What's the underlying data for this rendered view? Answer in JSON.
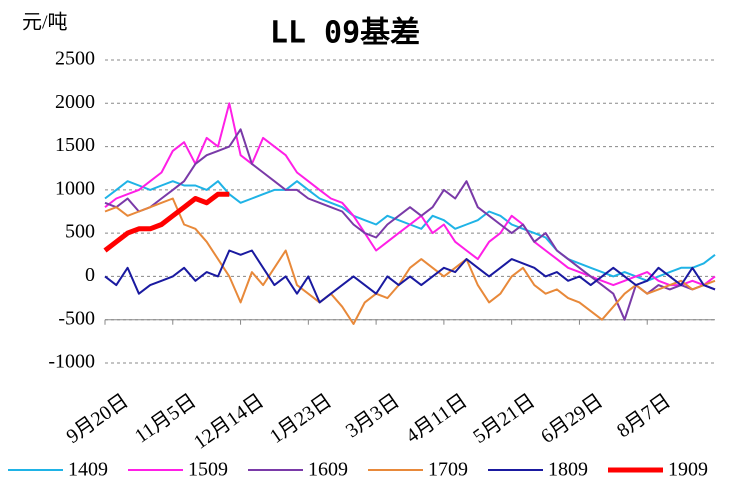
{
  "chart_data": {
    "type": "line",
    "title": "LL 09基差",
    "y_label": "元/吨",
    "categories": [
      "9月20日",
      null,
      null,
      null,
      null,
      null,
      "11月5日",
      null,
      null,
      null,
      null,
      null,
      "12月14日",
      null,
      null,
      null,
      null,
      null,
      "1月23日",
      null,
      null,
      null,
      null,
      null,
      "3月3日",
      null,
      null,
      null,
      null,
      null,
      "4月11日",
      null,
      null,
      null,
      null,
      null,
      "5月21日",
      null,
      null,
      null,
      null,
      null,
      "6月29日",
      null,
      null,
      null,
      null,
      null,
      "8月7日",
      null,
      null,
      null,
      null,
      null,
      null
    ],
    "series": [
      {
        "name": "1409",
        "color": "#1fb3e6",
        "width": 2,
        "values": [
          900,
          1000,
          1100,
          1050,
          1000,
          1050,
          1100,
          1050,
          1050,
          1000,
          1100,
          950,
          850,
          900,
          950,
          1000,
          1000,
          1100,
          1000,
          900,
          850,
          800,
          700,
          650,
          600,
          700,
          650,
          600,
          550,
          700,
          650,
          550,
          600,
          650,
          750,
          700,
          600,
          550,
          500,
          450,
          300,
          200,
          150,
          100,
          50,
          0,
          50,
          0,
          -50,
          0,
          50,
          100,
          100,
          150,
          250
        ]
      },
      {
        "name": "1509",
        "color": "#ff1fe6",
        "width": 2,
        "values": [
          800,
          900,
          950,
          1000,
          1100,
          1200,
          1450,
          1550,
          1300,
          1600,
          1500,
          2000,
          1400,
          1300,
          1600,
          1500,
          1400,
          1200,
          1100,
          1000,
          900,
          850,
          700,
          500,
          300,
          400,
          500,
          600,
          700,
          500,
          600,
          400,
          300,
          200,
          400,
          500,
          700,
          600,
          400,
          300,
          200,
          100,
          50,
          0,
          -50,
          -100,
          -50,
          0,
          50,
          -50,
          -100,
          -100,
          -50,
          -100,
          0
        ]
      },
      {
        "name": "1609",
        "color": "#7a3aa8",
        "width": 2,
        "values": [
          850,
          800,
          900,
          750,
          800,
          900,
          1000,
          1100,
          1300,
          1400,
          1450,
          1500,
          1700,
          1300,
          1200,
          1100,
          1000,
          1000,
          900,
          850,
          800,
          750,
          600,
          500,
          450,
          600,
          700,
          800,
          700,
          800,
          1000,
          900,
          1100,
          800,
          700,
          600,
          500,
          600,
          400,
          500,
          300,
          200,
          100,
          0,
          -100,
          -200,
          -500,
          -100,
          -200,
          -100,
          -150,
          -100,
          -150,
          -100,
          -150
        ]
      },
      {
        "name": "1709",
        "color": "#e8893a",
        "width": 2,
        "values": [
          750,
          800,
          700,
          750,
          800,
          850,
          900,
          600,
          550,
          400,
          200,
          0,
          -300,
          50,
          -100,
          100,
          300,
          -100,
          -200,
          -300,
          -200,
          -350,
          -550,
          -300,
          -200,
          -250,
          -100,
          100,
          200,
          100,
          0,
          100,
          200,
          -100,
          -300,
          -200,
          0,
          100,
          -100,
          -200,
          -150,
          -250,
          -300,
          -400,
          -500,
          -350,
          -200,
          -100,
          -200,
          -150,
          -100,
          -50,
          -150,
          -100,
          -50
        ]
      },
      {
        "name": "1809",
        "color": "#1a1aa0",
        "width": 2,
        "values": [
          0,
          -100,
          100,
          -200,
          -100,
          -50,
          0,
          100,
          -50,
          50,
          0,
          300,
          250,
          300,
          100,
          -100,
          0,
          -200,
          0,
          -300,
          -200,
          -100,
          0,
          -100,
          -200,
          0,
          -100,
          0,
          -100,
          0,
          100,
          50,
          200,
          100,
          0,
          100,
          200,
          150,
          100,
          0,
          50,
          -50,
          0,
          -100,
          0,
          100,
          0,
          -100,
          -50,
          100,
          0,
          -100,
          100,
          -100,
          -150
        ]
      },
      {
        "name": "1909",
        "color": "#ff0000",
        "width": 5,
        "values": [
          300,
          400,
          500,
          550,
          550,
          600,
          700,
          800,
          900,
          850,
          950,
          950,
          null,
          null,
          null,
          null,
          null,
          null,
          null,
          null,
          null,
          null,
          null,
          null,
          null,
          null,
          null,
          null,
          null,
          null,
          null,
          null,
          null,
          null,
          null,
          null,
          null,
          null,
          null,
          null,
          null,
          null,
          null,
          null,
          null,
          null,
          null,
          null,
          null,
          null,
          null,
          null,
          null,
          null,
          null
        ]
      }
    ],
    "ylim": [
      -1000,
      2500
    ],
    "yticks": [
      -1000,
      -500,
      0,
      500,
      1000,
      1500,
      2000,
      2500
    ],
    "grid": true,
    "xaxis_crossing": -500,
    "legend": "bottom"
  }
}
